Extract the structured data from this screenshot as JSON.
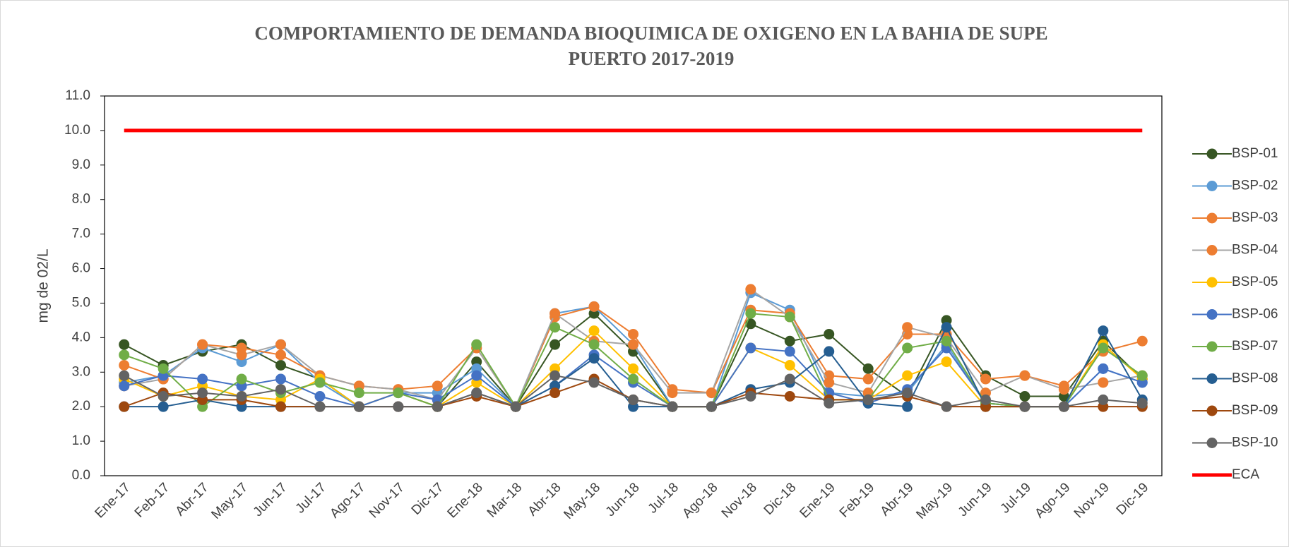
{
  "chart_data": {
    "type": "line",
    "title": [
      "COMPORTAMIENTO DE  DEMANDA BIOQUIMICA DE OXIGENO  EN LA BAHIA DE SUPE",
      "PUERTO 2017-2019"
    ],
    "y_label": "mg de 02/L",
    "categories": [
      "Ene-17",
      "Feb-17",
      "Abr-17",
      "May-17",
      "Jun-17",
      "Jul-17",
      "Ago-17",
      "Nov-17",
      "Dic-17",
      "Ene-18",
      "Mar-18",
      "Abr-18",
      "May-18",
      "Jun-18",
      "Jul-18",
      "Ago-18",
      "Nov-18",
      "Dic-18",
      "Ene-19",
      "Feb-19",
      "Abr-19",
      "May-19",
      "Jun-19",
      "Jul-19",
      "Ago-19",
      "Nov-19",
      "Dic-19"
    ],
    "ylim": [
      0,
      11
    ],
    "yticks": [
      {
        "value": 0,
        "label": "0.0"
      },
      {
        "value": 1,
        "label": "1.0"
      },
      {
        "value": 2,
        "label": "2.0"
      },
      {
        "value": 3,
        "label": "3.0"
      },
      {
        "value": 4,
        "label": "4.0"
      },
      {
        "value": 5,
        "label": "5.0"
      },
      {
        "value": 6,
        "label": "6.0"
      },
      {
        "value": 7,
        "label": "7.0"
      },
      {
        "value": 8,
        "label": "8.0"
      },
      {
        "value": 9,
        "label": "9.0"
      },
      {
        "value": 10,
        "label": "10.0"
      },
      {
        "value": 11,
        "label": "11.0"
      }
    ],
    "grid": false,
    "legend": "right",
    "series": [
      {
        "name": "BSP-01",
        "color": "#375623",
        "values": [
          3.8,
          3.2,
          3.6,
          3.8,
          3.2,
          2.8,
          2.0,
          2.4,
          2.0,
          3.3,
          2.0,
          3.8,
          4.7,
          3.6,
          2.0,
          2.0,
          4.4,
          3.9,
          4.1,
          3.1,
          2.3,
          4.5,
          2.9,
          2.3,
          2.3,
          3.9,
          2.8
        ]
      },
      {
        "name": "BSP-02",
        "color": "#5b9bd5",
        "values": [
          2.7,
          2.9,
          3.7,
          3.3,
          3.8,
          2.7,
          2.0,
          2.4,
          2.4,
          3.1,
          2.0,
          4.7,
          4.9,
          3.8,
          2.0,
          2.0,
          5.3,
          4.8,
          2.4,
          2.3,
          2.4,
          3.8,
          2.1,
          2.0,
          2.0,
          3.1,
          2.7
        ]
      },
      {
        "name": "BSP-03",
        "color": "#ed7d31",
        "values": [
          3.2,
          2.8,
          3.8,
          3.7,
          3.5,
          2.9,
          2.6,
          2.5,
          2.6,
          3.7,
          2.0,
          4.6,
          4.9,
          4.1,
          2.5,
          2.4,
          4.8,
          4.7,
          2.9,
          2.8,
          4.1,
          4.1,
          2.8,
          2.9,
          2.6,
          3.6,
          3.9
        ]
      },
      {
        "name": "BSP-04",
        "color": "#ed7d31",
        "line_color": "#a5a5a5",
        "values": [
          2.6,
          2.8,
          3.8,
          3.5,
          3.8,
          2.9,
          2.6,
          2.5,
          2.2,
          3.7,
          2.0,
          4.7,
          3.9,
          3.8,
          2.4,
          2.4,
          5.4,
          4.6,
          2.7,
          2.4,
          4.3,
          4.0,
          2.4,
          2.9,
          2.5,
          2.7,
          2.9
        ]
      },
      {
        "name": "BSP-05",
        "color": "#ffc000",
        "values": [
          2.8,
          2.3,
          2.6,
          2.3,
          2.2,
          2.8,
          2.0,
          2.4,
          2.0,
          2.7,
          2.0,
          3.1,
          4.2,
          3.1,
          2.0,
          2.0,
          3.7,
          3.2,
          2.2,
          2.2,
          2.9,
          3.3,
          2.0,
          2.0,
          2.0,
          3.8,
          2.8
        ]
      },
      {
        "name": "BSP-06",
        "color": "#4472c4",
        "values": [
          2.6,
          2.9,
          2.8,
          2.6,
          2.8,
          2.3,
          2.0,
          2.4,
          2.2,
          2.9,
          2.0,
          2.6,
          3.5,
          2.7,
          2.0,
          2.0,
          3.7,
          3.6,
          2.4,
          2.1,
          2.5,
          3.7,
          2.1,
          2.0,
          2.0,
          3.1,
          2.7
        ]
      },
      {
        "name": "BSP-07",
        "color": "#70ad47",
        "values": [
          3.5,
          3.1,
          2.0,
          2.8,
          2.4,
          2.7,
          2.4,
          2.4,
          2.0,
          3.8,
          2.0,
          4.3,
          3.8,
          2.8,
          2.0,
          2.0,
          4.7,
          4.6,
          2.2,
          2.2,
          3.7,
          3.9,
          2.1,
          2.0,
          2.0,
          3.7,
          2.9
        ]
      },
      {
        "name": "BSP-08",
        "color": "#255e91",
        "values": [
          2.0,
          2.0,
          2.2,
          2.0,
          2.0,
          2.0,
          2.0,
          2.0,
          2.0,
          2.4,
          2.0,
          2.6,
          3.4,
          2.0,
          2.0,
          2.0,
          2.5,
          2.7,
          3.6,
          2.1,
          2.0,
          4.3,
          2.0,
          2.0,
          2.0,
          4.2,
          2.2
        ]
      },
      {
        "name": "BSP-09",
        "color": "#9e480e",
        "values": [
          2.0,
          2.4,
          2.2,
          2.2,
          2.0,
          2.0,
          2.0,
          2.0,
          2.0,
          2.3,
          2.0,
          2.4,
          2.8,
          2.2,
          2.0,
          2.0,
          2.4,
          2.3,
          2.2,
          2.2,
          2.3,
          2.0,
          2.0,
          2.0,
          2.0,
          2.0,
          2.0
        ]
      },
      {
        "name": "BSP-10",
        "color": "#636363",
        "values": [
          2.9,
          2.3,
          2.4,
          2.3,
          2.5,
          2.0,
          2.0,
          2.0,
          2.0,
          2.4,
          2.0,
          2.9,
          2.7,
          2.2,
          2.0,
          2.0,
          2.3,
          2.8,
          2.1,
          2.2,
          2.4,
          2.0,
          2.2,
          2.0,
          2.0,
          2.2,
          2.1
        ]
      },
      {
        "name": "ECA",
        "color": "#ff0000",
        "markers": false,
        "values": [
          10,
          10,
          10,
          10,
          10,
          10,
          10,
          10,
          10,
          10,
          10,
          10,
          10,
          10,
          10,
          10,
          10,
          10,
          10,
          10,
          10,
          10,
          10,
          10,
          10,
          10,
          10
        ]
      }
    ]
  }
}
